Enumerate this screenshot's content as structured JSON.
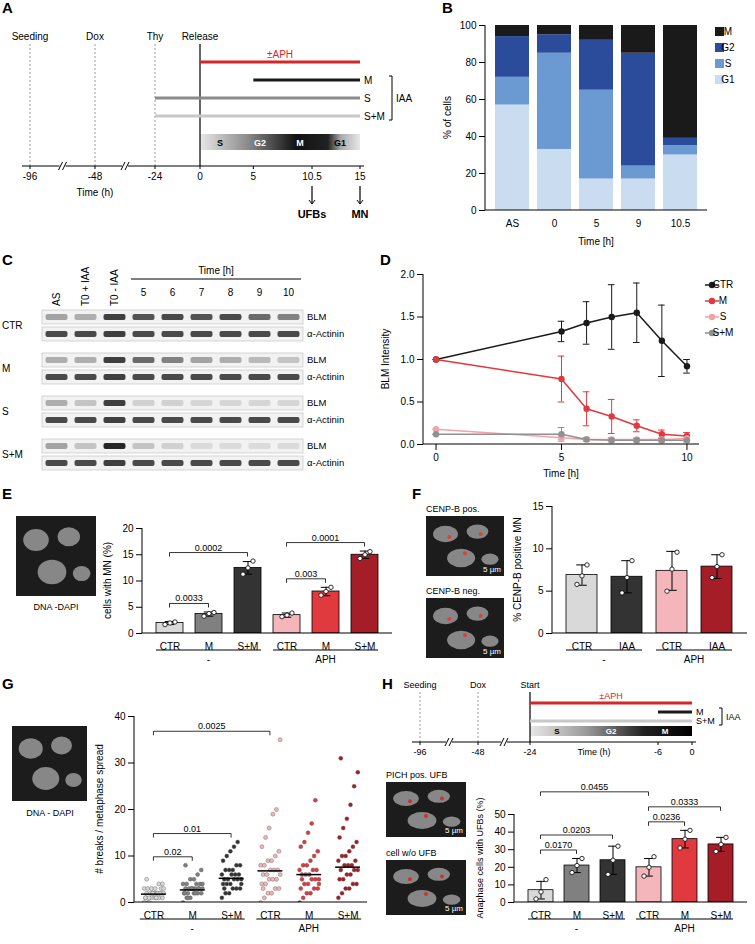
{
  "chart_data": [
    {
      "panel": "B",
      "type": "bar",
      "stacked": true,
      "categories": [
        "AS",
        "0",
        "5",
        "9",
        "10.5"
      ],
      "series": [
        {
          "name": "G1",
          "color": "#c9dcf0",
          "values": [
            57,
            33,
            17,
            17,
            30
          ]
        },
        {
          "name": "S",
          "color": "#6b9ad3",
          "values": [
            15,
            52,
            48,
            7,
            5
          ]
        },
        {
          "name": "G2",
          "color": "#2b4c9b",
          "values": [
            22,
            10,
            27,
            61,
            4
          ]
        },
        {
          "name": "M",
          "color": "#1a1a1a",
          "values": [
            6,
            5,
            8,
            15,
            61
          ]
        }
      ],
      "ylim": [
        0,
        100
      ],
      "yticks": [
        0,
        20,
        40,
        60,
        80,
        100
      ],
      "ylabel": "% of cells",
      "xlabel": "Time [h]",
      "legend": "right"
    },
    {
      "panel": "D",
      "type": "line",
      "marker": "circle",
      "x": [
        0,
        5,
        6,
        7,
        8,
        9,
        10
      ],
      "series": [
        {
          "name": "CTR",
          "color": "#1a1a1a",
          "values": [
            1,
            1.33,
            1.43,
            1.5,
            1.55,
            1.22,
            0.92
          ],
          "errors": [
            0,
            0.12,
            0.25,
            0.38,
            0.35,
            0.42,
            0.08
          ]
        },
        {
          "name": "M",
          "color": "#e0393e",
          "values": [
            1,
            0.77,
            0.42,
            0.33,
            0.22,
            0.12,
            0.1
          ],
          "errors": [
            0,
            0.27,
            0.2,
            0.2,
            0.07,
            0.05,
            0.04
          ]
        },
        {
          "name": "S",
          "color": "#f2a3aa",
          "values": [
            0.18,
            0.08,
            0.06,
            0.06,
            0.06,
            0.06,
            0.07
          ],
          "errors": [
            0,
            0.02,
            0.02,
            0.02,
            0.02,
            0.02,
            0.02
          ]
        },
        {
          "name": "S+M",
          "color": "#909090",
          "values": [
            0.12,
            0.12,
            0.06,
            0.05,
            0.05,
            0.05,
            0.05
          ],
          "errors": [
            0,
            0.08,
            0.02,
            0.02,
            0.02,
            0.02,
            0.02
          ]
        }
      ],
      "xlim": [
        -0.5,
        10.5
      ],
      "xticks": [
        0,
        5,
        10
      ],
      "ylim": [
        0,
        2
      ],
      "yticks": [
        {
          "value": 0,
          "label": "0.0"
        },
        {
          "value": 0.5,
          "label": "0.5"
        },
        {
          "value": 1,
          "label": "1.0"
        },
        {
          "value": 1.5,
          "label": "1.5"
        },
        {
          "value": 2,
          "label": "2.0"
        }
      ],
      "ylabel": "BLM Intensity",
      "xlabel": "Time [h]",
      "legend": "right"
    },
    {
      "panel": "E",
      "type": "bar",
      "categories": [
        "CTR",
        "M",
        "S+M",
        "CTR",
        "M",
        "S+M"
      ],
      "values": [
        2.0,
        3.7,
        12.5,
        3.5,
        8.0,
        15.0
      ],
      "errors": [
        0.3,
        0.4,
        1.2,
        0.4,
        0.8,
        0.7
      ],
      "points": [
        [
          1.7,
          2.0,
          2.2
        ],
        [
          3.3,
          3.8,
          4.0
        ],
        [
          11.3,
          12.5,
          13.8
        ],
        [
          3.2,
          3.5,
          3.9
        ],
        [
          7.3,
          8.0,
          8.8
        ],
        [
          14.3,
          15.0,
          15.6
        ]
      ],
      "colors": [
        "#d9d9d9",
        "#808080",
        "#333333",
        "#f4b6ba",
        "#e0393e",
        "#a51d26"
      ],
      "groups": [
        {
          "label": "-",
          "from": 0,
          "to": 2
        },
        {
          "label": "APH",
          "from": 3,
          "to": 5
        }
      ],
      "annotations": [
        {
          "from": 0,
          "to": 1,
          "label": "0.0033"
        },
        {
          "from": 0,
          "to": 2,
          "label": "0.0002"
        },
        {
          "from": 3,
          "to": 4,
          "label": "0.003"
        },
        {
          "from": 3,
          "to": 5,
          "label": "0.0001"
        }
      ],
      "ylim": [
        0,
        20
      ],
      "yticks": [
        0,
        5,
        10,
        15,
        20
      ],
      "ylabel": "cells with MN (%)"
    },
    {
      "panel": "F",
      "type": "bar",
      "categories": [
        "CTR",
        "IAA",
        "CTR",
        "IAA"
      ],
      "values": [
        6.9,
        6.7,
        7.4,
        7.9
      ],
      "errors": [
        1.2,
        1.9,
        2.3,
        1.4
      ],
      "points": [
        [
          5.8,
          6.8,
          8.1
        ],
        [
          4.8,
          6.6,
          8.6
        ],
        [
          5.0,
          7.6,
          9.6
        ],
        [
          6.6,
          7.9,
          9.3
        ]
      ],
      "colors": [
        "#d9d9d9",
        "#333333",
        "#f4b6ba",
        "#a51d26"
      ],
      "groups": [
        {
          "label": "-",
          "from": 0,
          "to": 1
        },
        {
          "label": "APH",
          "from": 2,
          "to": 3
        }
      ],
      "ylim": [
        0,
        15
      ],
      "yticks": [
        0,
        5,
        10,
        15
      ],
      "ylabel": "% CENP-B positive MN"
    },
    {
      "panel": "G",
      "type": "scatter",
      "categories": [
        "CTR",
        "M",
        "S+M",
        "CTR",
        "M",
        "S+M"
      ],
      "values": [
        1.8,
        2.7,
        5.2,
        6.8,
        6.0,
        7.6
      ],
      "points": [
        [
          0,
          0,
          1,
          1,
          1,
          1,
          1,
          1,
          2,
          2,
          2,
          2,
          2,
          2,
          2,
          2,
          3,
          3,
          3,
          3,
          3,
          4,
          4,
          1,
          0,
          2,
          1,
          2,
          3,
          5
        ],
        [
          0,
          1,
          1,
          2,
          2,
          2,
          2,
          2,
          3,
          3,
          3,
          3,
          3,
          3,
          3,
          4,
          4,
          4,
          4,
          5,
          5,
          6,
          7,
          2,
          1,
          3,
          2,
          3,
          4,
          8
        ],
        [
          1,
          2,
          2,
          3,
          3,
          3,
          4,
          4,
          4,
          5,
          5,
          5,
          5,
          5,
          6,
          6,
          6,
          6,
          7,
          7,
          7,
          8,
          8,
          9,
          10,
          11,
          12,
          13,
          4,
          3
        ],
        [
          0,
          1,
          2,
          2,
          3,
          3,
          4,
          4,
          5,
          5,
          5,
          6,
          6,
          6,
          7,
          7,
          7,
          8,
          8,
          9,
          9,
          10,
          11,
          12,
          14,
          16,
          19,
          20,
          35,
          3
        ],
        [
          0,
          1,
          2,
          2,
          3,
          3,
          3,
          4,
          4,
          5,
          5,
          5,
          6,
          6,
          6,
          7,
          7,
          7,
          8,
          8,
          9,
          10,
          11,
          12,
          13,
          15,
          17,
          22,
          4,
          5
        ],
        [
          1,
          2,
          3,
          3,
          4,
          4,
          5,
          5,
          6,
          6,
          7,
          7,
          7,
          8,
          8,
          8,
          9,
          9,
          10,
          10,
          11,
          12,
          13,
          14,
          16,
          18,
          21,
          25,
          28,
          31
        ]
      ],
      "colors": [
        "#d9d9d9",
        "#808080",
        "#333333",
        "#f4b6ba",
        "#e0393e",
        "#a51d26"
      ],
      "groups": [
        {
          "label": "-",
          "from": 0,
          "to": 2
        },
        {
          "label": "APH",
          "from": 3,
          "to": 5
        }
      ],
      "annotations": [
        {
          "from": 0,
          "to": 1,
          "label": "0.02"
        },
        {
          "from": 0,
          "to": 2,
          "label": "0.01"
        },
        {
          "from": 0,
          "to": 3,
          "label": "0.0025"
        }
      ],
      "ylim": [
        0,
        40
      ],
      "yticks": [
        0,
        10,
        20,
        30,
        40
      ],
      "ylabel": "# breaks / metaphase spread"
    },
    {
      "panel_of": "H",
      "type": "bar",
      "categories": [
        "CTR",
        "M",
        "S+M",
        "CTR",
        "M",
        "S+M"
      ],
      "values": [
        7,
        21,
        24,
        20,
        36,
        33
      ],
      "errors": [
        5,
        4,
        8,
        5,
        5,
        4
      ],
      "points": [
        [
          2,
          6,
          13
        ],
        [
          17,
          21,
          25
        ],
        [
          16,
          24,
          32
        ],
        [
          15,
          20,
          26
        ],
        [
          31,
          36,
          41
        ],
        [
          29,
          33,
          37
        ]
      ],
      "colors": [
        "#d9d9d9",
        "#808080",
        "#333333",
        "#f4b6ba",
        "#e0393e",
        "#a51d26"
      ],
      "groups": [
        {
          "label": "-",
          "from": 0,
          "to": 2
        },
        {
          "label": "APH",
          "from": 3,
          "to": 5
        }
      ],
      "annotations": [
        {
          "from": 0,
          "to": 1,
          "label": "0.0170"
        },
        {
          "from": 0,
          "to": 2,
          "label": "0.0203"
        },
        {
          "from": 0,
          "to": 3,
          "label": "0.0455"
        },
        {
          "from": 3,
          "to": 4,
          "label": "0.0236"
        },
        {
          "from": 3,
          "to": 5,
          "label": "0.0333"
        }
      ],
      "ylim": [
        0,
        50
      ],
      "yticks": [
        0,
        10,
        20,
        30,
        40,
        50
      ],
      "ylabel": "Anaphase cells with UFBs (%)"
    }
  ],
  "diagrams": {
    "A": {
      "panel": "A",
      "events": [
        {
          "time": -96,
          "label": "Seeding",
          "line_style": "dotted"
        },
        {
          "time": -48,
          "label": "Dox",
          "line_style": "dotted"
        },
        {
          "time": -24,
          "label": "Thy",
          "line_style": "dotted"
        },
        {
          "time": 0,
          "label": "Release",
          "line_style": "solid"
        }
      ],
      "treatments": [
        {
          "label": "±APH",
          "from": 0,
          "to": 15,
          "color": "#d62728"
        },
        {
          "label": "M",
          "from": 5,
          "to": 15,
          "color": "#1a1a1a"
        },
        {
          "label": "S",
          "from": -24,
          "to": 15,
          "color": "#8c8c8c"
        },
        {
          "label": "S+M",
          "from": -24,
          "to": 15,
          "color": "#c8c8c8"
        }
      ],
      "bracket": {
        "label": "IAA",
        "from": 1,
        "to": 3
      },
      "phases": [
        "S",
        "G2",
        "M",
        "G1"
      ],
      "ticks": [
        -96,
        -48,
        -24,
        0,
        5,
        10.5,
        15
      ],
      "axis_label": "Time (h)",
      "readouts": [
        {
          "time": 10.5,
          "label": "UFBs"
        },
        {
          "time": 15,
          "label": "MN"
        }
      ]
    },
    "C": {
      "panel": "C",
      "lanes": [
        "AS",
        "T0 + IAA",
        "T0 - IAA"
      ],
      "time_label": "Time [h]",
      "times": [
        5,
        6,
        7,
        8,
        9,
        10
      ],
      "rows": [
        {
          "label": "CTR",
          "bands": [
            {
              "label": "BLM",
              "intensity": [
                0.35,
                0.3,
                0.8,
                0.7,
                0.75,
                0.7,
                0.75,
                0.6,
                0.5
              ]
            },
            {
              "label": "α-Actinin",
              "intensity": [
                0.75,
                0.75,
                0.8,
                0.75,
                0.75,
                0.75,
                0.75,
                0.75,
                0.75
              ]
            }
          ]
        },
        {
          "label": "M",
          "bands": [
            {
              "label": "BLM",
              "intensity": [
                0.3,
                0.3,
                0.8,
                0.6,
                0.5,
                0.35,
                0.3,
                0.25,
                0.2
              ]
            },
            {
              "label": "α-Actinin",
              "intensity": [
                0.75,
                0.75,
                0.8,
                0.75,
                0.75,
                0.75,
                0.75,
                0.75,
                0.75
              ]
            }
          ]
        },
        {
          "label": "S",
          "bands": [
            {
              "label": "BLM",
              "intensity": [
                0.3,
                0.2,
                0.8,
                0.15,
                0.15,
                0.12,
                0.12,
                0.12,
                0.12
              ]
            },
            {
              "label": "α-Actinin",
              "intensity": [
                0.75,
                0.75,
                0.8,
                0.75,
                0.75,
                0.75,
                0.75,
                0.75,
                0.75
              ]
            }
          ]
        },
        {
          "label": "S+M",
          "bands": [
            {
              "label": "BLM",
              "intensity": [
                0.35,
                0.2,
                0.9,
                0.2,
                0.15,
                0.1,
                0.1,
                0.1,
                0.1
              ]
            },
            {
              "label": "α-Actinin",
              "intensity": [
                0.75,
                0.75,
                0.8,
                0.75,
                0.75,
                0.75,
                0.75,
                0.75,
                0.75
              ]
            }
          ]
        }
      ]
    },
    "H": {
      "panel": "H",
      "events": [
        {
          "time": -96,
          "label": "Seeding",
          "line_style": "dotted"
        },
        {
          "time": -48,
          "label": "Dox",
          "line_style": "dotted"
        },
        {
          "time": -24,
          "label": "Start",
          "line_style": "solid"
        }
      ],
      "treatments": [
        {
          "label": "±APH",
          "from": -24,
          "to": 0,
          "color": "#d62728"
        },
        {
          "label": "M",
          "from": -6,
          "to": 0,
          "color": "#1a1a1a"
        },
        {
          "label": "S+M",
          "from": -24,
          "to": 0,
          "color": "#c8c8c8"
        }
      ],
      "bracket": {
        "label": "IAA",
        "from": 1,
        "to": 2
      },
      "phases": [
        "S",
        "G2",
        "M"
      ],
      "ticks": [
        -96,
        -48,
        -24,
        -6,
        0
      ],
      "axis_label": "Time (h)"
    }
  },
  "images": {
    "E": {
      "caption": "DNA -DAPI"
    },
    "F": {
      "labels": [
        "CENP-B pos.",
        "CENP-B neg."
      ],
      "scale": "5 µm"
    },
    "G": {
      "caption": "DNA - DAPI"
    },
    "H": {
      "labels": [
        "PICH pos. UFB",
        "cell w/o UFB"
      ],
      "scale": "5 µm"
    }
  }
}
